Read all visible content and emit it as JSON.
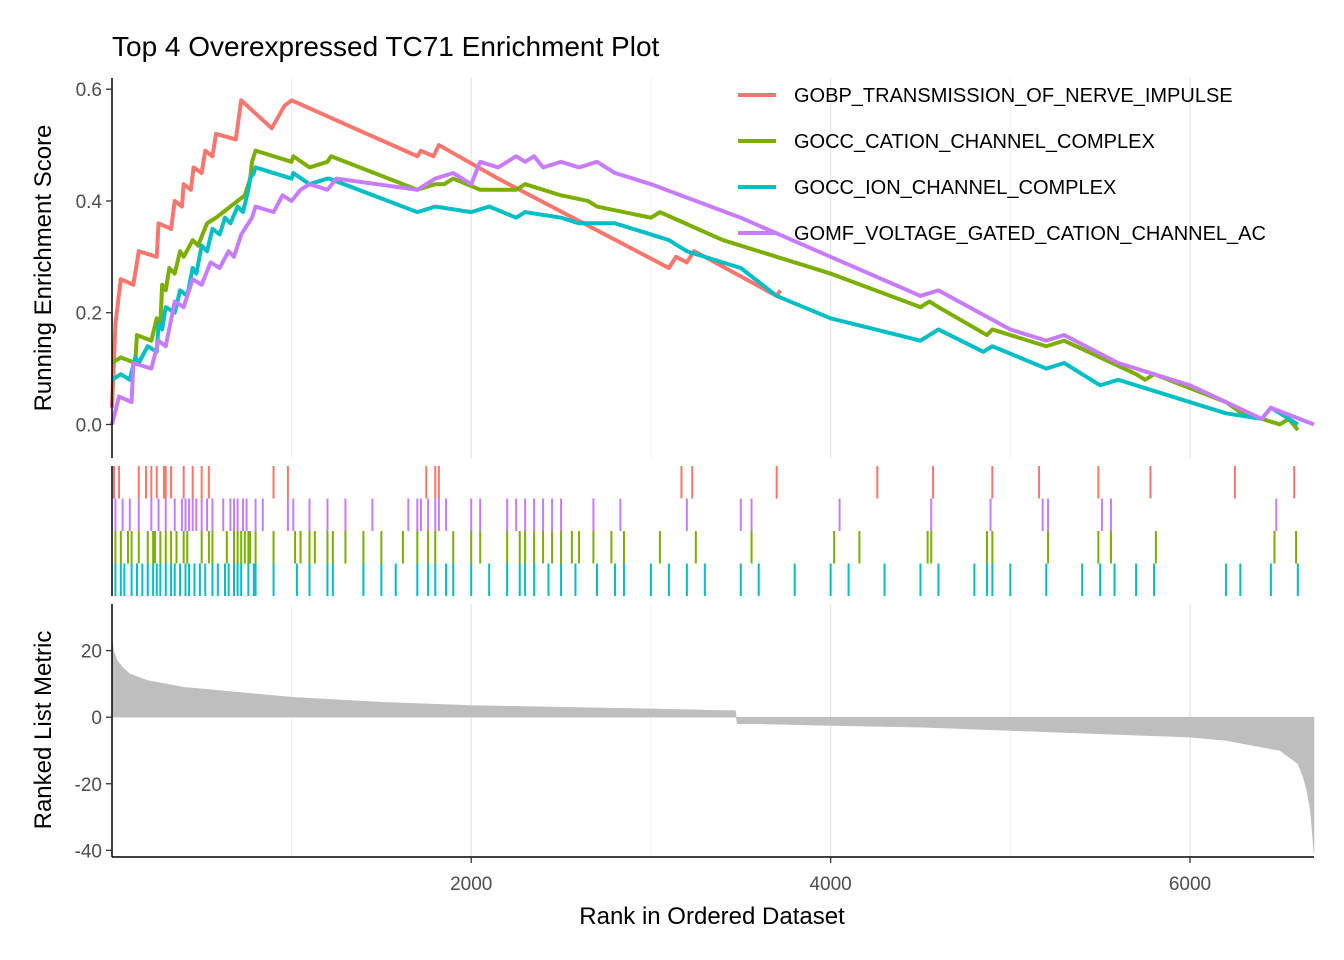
{
  "chart_data": {
    "type": "line",
    "title": "Top 4 Overexpressed TC71 Enrichment Plot",
    "xlabel": "Rank in Ordered Dataset",
    "ylabel_top": "Running Enrichment Score",
    "ylabel_bottom": "Ranked List Metric",
    "xlim": [
      1,
      6690
    ],
    "x_ticks": [
      2000,
      4000,
      6000
    ],
    "x_tick_labels": [
      "2000",
      "4000",
      "6000"
    ],
    "es_ylim": [
      -0.06,
      0.62
    ],
    "es_ticks": [
      0.0,
      0.2,
      0.4,
      0.6
    ],
    "es_tick_labels": [
      "0.0",
      "0.2",
      "0.4",
      "0.6"
    ],
    "metric_ylim": [
      -42,
      34
    ],
    "metric_ticks": [
      20,
      0,
      -20,
      -40
    ],
    "metric_tick_labels": [
      "20",
      "0",
      "-20",
      "-40"
    ],
    "legend_position": "top-right",
    "grid": true,
    "series": [
      {
        "name": "GOBP_TRANSMISSION_OF_NERVE_IMPULSE",
        "color": "#F8766D",
        "x": [
          1,
          20,
          50,
          120,
          150,
          250,
          260,
          330,
          350,
          390,
          400,
          440,
          455,
          500,
          520,
          560,
          580,
          690,
          720,
          890,
          960,
          1000,
          1700,
          1720,
          1790,
          1820,
          2150,
          3100,
          3140,
          3200,
          3240,
          3300,
          3700,
          3720
        ],
        "y": [
          0.03,
          0.18,
          0.26,
          0.25,
          0.31,
          0.3,
          0.36,
          0.35,
          0.4,
          0.39,
          0.43,
          0.42,
          0.46,
          0.45,
          0.49,
          0.48,
          0.52,
          0.51,
          0.58,
          0.53,
          0.57,
          0.58,
          0.48,
          0.49,
          0.48,
          0.5,
          0.44,
          0.28,
          0.3,
          0.29,
          0.31,
          0.3,
          0.23,
          0.24
        ]
      },
      {
        "name": "GOCC_CATION_CHANNEL_COMPLEX",
        "color": "#7CAE00",
        "x": [
          1,
          50,
          130,
          140,
          220,
          250,
          270,
          280,
          300,
          320,
          350,
          380,
          400,
          450,
          480,
          530,
          580,
          620,
          660,
          700,
          740,
          760,
          770,
          780,
          800,
          1000,
          1010,
          1100,
          1200,
          1220,
          1700,
          1800,
          1850,
          1900,
          2050,
          2250,
          2300,
          2500,
          2650,
          2700,
          3000,
          3050,
          3400,
          4000,
          4500,
          4550,
          4600,
          4870,
          4900,
          5200,
          5300,
          5700,
          5750,
          5800,
          6200,
          6290,
          6400,
          6500,
          6550,
          6600
        ],
        "y": [
          0.11,
          0.12,
          0.11,
          0.16,
          0.15,
          0.19,
          0.18,
          0.25,
          0.24,
          0.28,
          0.27,
          0.31,
          0.3,
          0.33,
          0.32,
          0.36,
          0.37,
          0.38,
          0.39,
          0.4,
          0.41,
          0.43,
          0.44,
          0.47,
          0.49,
          0.47,
          0.48,
          0.46,
          0.47,
          0.48,
          0.42,
          0.43,
          0.43,
          0.44,
          0.42,
          0.42,
          0.43,
          0.41,
          0.4,
          0.39,
          0.37,
          0.38,
          0.33,
          0.27,
          0.21,
          0.22,
          0.21,
          0.16,
          0.17,
          0.14,
          0.15,
          0.09,
          0.08,
          0.09,
          0.04,
          0.02,
          0.01,
          0.0,
          0.01,
          -0.01
        ]
      },
      {
        "name": "GOCC_ION_CHANNEL_COMPLEX",
        "color": "#00BFC4",
        "x": [
          1,
          50,
          100,
          130,
          150,
          200,
          250,
          260,
          280,
          300,
          350,
          380,
          420,
          450,
          470,
          500,
          530,
          560,
          600,
          630,
          660,
          700,
          730,
          760,
          770,
          790,
          800,
          1000,
          1010,
          1100,
          1200,
          1210,
          1700,
          1800,
          2000,
          2100,
          2250,
          2300,
          2500,
          2600,
          2800,
          3000,
          3100,
          3200,
          3500,
          3700,
          4000,
          4500,
          4600,
          4850,
          4900,
          5200,
          5300,
          5500,
          5600,
          5700,
          6200,
          6400,
          6450,
          6600
        ],
        "y": [
          0.08,
          0.09,
          0.08,
          0.12,
          0.11,
          0.14,
          0.13,
          0.18,
          0.17,
          0.21,
          0.2,
          0.24,
          0.23,
          0.28,
          0.27,
          0.32,
          0.31,
          0.35,
          0.34,
          0.37,
          0.36,
          0.39,
          0.38,
          0.42,
          0.44,
          0.45,
          0.46,
          0.44,
          0.45,
          0.43,
          0.44,
          0.44,
          0.38,
          0.39,
          0.38,
          0.39,
          0.37,
          0.38,
          0.37,
          0.36,
          0.36,
          0.34,
          0.33,
          0.31,
          0.28,
          0.23,
          0.19,
          0.15,
          0.17,
          0.13,
          0.14,
          0.1,
          0.11,
          0.07,
          0.08,
          0.07,
          0.02,
          0.01,
          0.03,
          0.0
        ]
      },
      {
        "name": "GOMF_VOLTAGE_GATED_CATION_CHANNEL_AC",
        "color": "#C77CFF",
        "x": [
          1,
          40,
          110,
          120,
          220,
          260,
          300,
          350,
          400,
          450,
          500,
          550,
          600,
          650,
          680,
          720,
          760,
          780,
          800,
          900,
          950,
          1000,
          1050,
          1100,
          1200,
          1250,
          1700,
          1750,
          1800,
          1900,
          2000,
          2050,
          2150,
          2250,
          2300,
          2350,
          2400,
          2500,
          2600,
          2700,
          2800,
          2900,
          3000,
          3500,
          4000,
          4500,
          4600,
          5000,
          5200,
          5300,
          5600,
          5700,
          6000,
          6200,
          6400,
          6450,
          6690
        ],
        "y": [
          0.0,
          0.05,
          0.04,
          0.11,
          0.1,
          0.15,
          0.14,
          0.22,
          0.21,
          0.26,
          0.25,
          0.29,
          0.28,
          0.31,
          0.3,
          0.34,
          0.36,
          0.37,
          0.39,
          0.38,
          0.41,
          0.4,
          0.42,
          0.43,
          0.42,
          0.44,
          0.42,
          0.43,
          0.44,
          0.45,
          0.43,
          0.47,
          0.46,
          0.48,
          0.47,
          0.48,
          0.46,
          0.47,
          0.46,
          0.47,
          0.45,
          0.44,
          0.43,
          0.37,
          0.3,
          0.23,
          0.24,
          0.17,
          0.15,
          0.16,
          0.11,
          0.1,
          0.07,
          0.04,
          0.01,
          0.03,
          0.0
        ]
      }
    ],
    "hits": {
      "GOBP_TRANSMISSION_OF_NERVE_IMPULSE": [
        12,
        40,
        150,
        190,
        220,
        250,
        290,
        300,
        330,
        400,
        450,
        500,
        540,
        900,
        980,
        1750,
        1800,
        1820,
        3170,
        3230,
        3700,
        4260,
        4570,
        4900,
        5160,
        5490,
        5780,
        6250,
        6580
      ],
      "GOMF_VOLTAGE_GATED_CATION_CHANNEL_AC": [
        20,
        60,
        100,
        150,
        220,
        260,
        300,
        350,
        390,
        410,
        430,
        450,
        470,
        500,
        530,
        560,
        620,
        660,
        680,
        700,
        730,
        750,
        800,
        840,
        980,
        1010,
        1100,
        1200,
        1300,
        1450,
        1650,
        1700,
        1720,
        1760,
        1800,
        1820,
        1860,
        2000,
        2050,
        2200,
        2250,
        2300,
        2350,
        2400,
        2450,
        2500,
        2680,
        2830,
        3200,
        3500,
        3560,
        4050,
        4560,
        4890,
        5180,
        5210,
        5510,
        5560,
        6480
      ],
      "GOCC_CATION_CHANNEL_COMPLEX": [
        20,
        50,
        90,
        110,
        150,
        200,
        230,
        240,
        270,
        300,
        330,
        360,
        400,
        420,
        500,
        540,
        560,
        640,
        680,
        700,
        720,
        740,
        760,
        770,
        800,
        900,
        1020,
        1050,
        1100,
        1130,
        1200,
        1230,
        1300,
        1400,
        1500,
        1620,
        1700,
        1760,
        1800,
        1900,
        2000,
        2050,
        2200,
        2270,
        2300,
        2350,
        2400,
        2450,
        2500,
        2560,
        2600,
        2680,
        2780,
        2850,
        3050,
        3250,
        3560,
        4020,
        4160,
        4540,
        4560,
        4870,
        4900,
        5210,
        5490,
        5560,
        5810,
        6470,
        6590
      ],
      "GOCC_ION_CHANNEL_COMPLEX": [
        20,
        50,
        70,
        110,
        140,
        170,
        200,
        230,
        250,
        270,
        300,
        330,
        350,
        380,
        410,
        430,
        460,
        490,
        520,
        560,
        590,
        630,
        650,
        680,
        700,
        720,
        760,
        790,
        800,
        900,
        1030,
        1100,
        1200,
        1230,
        1400,
        1500,
        1580,
        1700,
        1760,
        1800,
        1860,
        1900,
        2000,
        2100,
        2200,
        2270,
        2300,
        2350,
        2430,
        2500,
        2580,
        2700,
        2800,
        2850,
        3000,
        3100,
        3200,
        3300,
        3500,
        3600,
        3800,
        4000,
        4100,
        4300,
        4500,
        4600,
        4800,
        4870,
        4900,
        5000,
        5200,
        5400,
        5500,
        5580,
        5700,
        5800,
        6200,
        6280,
        6450,
        6600
      ]
    },
    "metric": {
      "x": [
        1,
        10,
        30,
        60,
        100,
        150,
        200,
        300,
        400,
        500,
        600,
        800,
        1000,
        1500,
        2000,
        2500,
        3000,
        3400,
        3470,
        3480,
        3600,
        4000,
        4500,
        5000,
        5500,
        6000,
        6200,
        6400,
        6500,
        6550,
        6600,
        6630,
        6650,
        6670,
        6690
      ],
      "y": [
        24,
        20,
        17,
        15,
        13,
        12,
        11,
        10,
        9,
        8.5,
        8,
        7,
        6,
        4.5,
        3.5,
        3,
        2.5,
        2,
        2,
        -2,
        -2,
        -2.5,
        -3,
        -4,
        -5,
        -6,
        -7,
        -9,
        -10,
        -12,
        -14,
        -18,
        -22,
        -28,
        -41
      ]
    }
  }
}
